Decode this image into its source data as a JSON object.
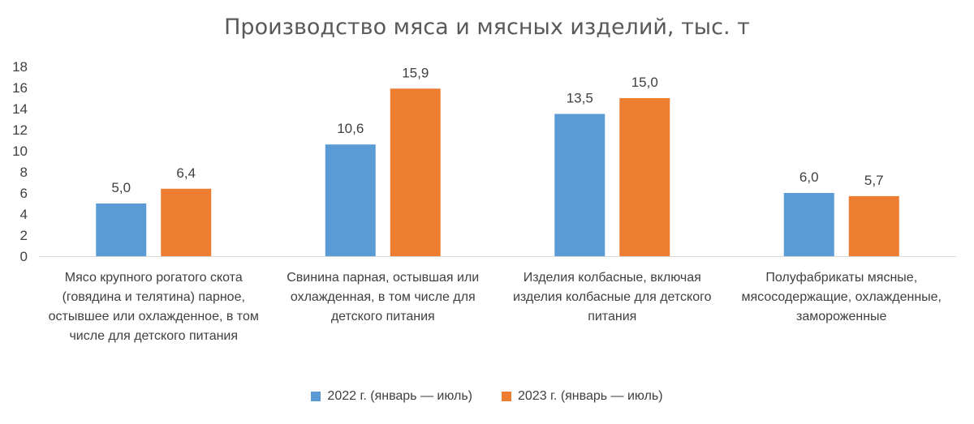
{
  "chart_data": {
    "type": "bar",
    "title": "Производство мяса и мясных изделий, тыс. т",
    "categories": [
      "Мясо крупного рогатого скота (говядина и телятина) парное, остывшее или охлажденное, в том числе для детского питания",
      "Свинина парная, остывшая или охлажденная, в том числе для детского питания",
      "Изделия колбасные, включая изделия колбасные для детского питания",
      "Полуфабрикаты мясные, мясосодержащие, охлажденные, замороженные"
    ],
    "series": [
      {
        "name": "2022 г. (январь — июль)",
        "values": [
          5.0,
          10.6,
          13.5,
          6.0
        ],
        "labels": [
          "5,0",
          "10,6",
          "13,5",
          "6,0"
        ],
        "color": "#5B9BD5"
      },
      {
        "name": "2023 г. (январь — июль)",
        "values": [
          6.4,
          15.9,
          15.0,
          5.7
        ],
        "labels": [
          "6,4",
          "15,9",
          "15,0",
          "5,7"
        ],
        "color": "#ED7D31"
      }
    ],
    "yticks": [
      "0",
      "2",
      "4",
      "6",
      "8",
      "10",
      "12",
      "14",
      "16",
      "18"
    ],
    "ylim": [
      0,
      18
    ],
    "grid": false,
    "legend_position": "bottom"
  }
}
